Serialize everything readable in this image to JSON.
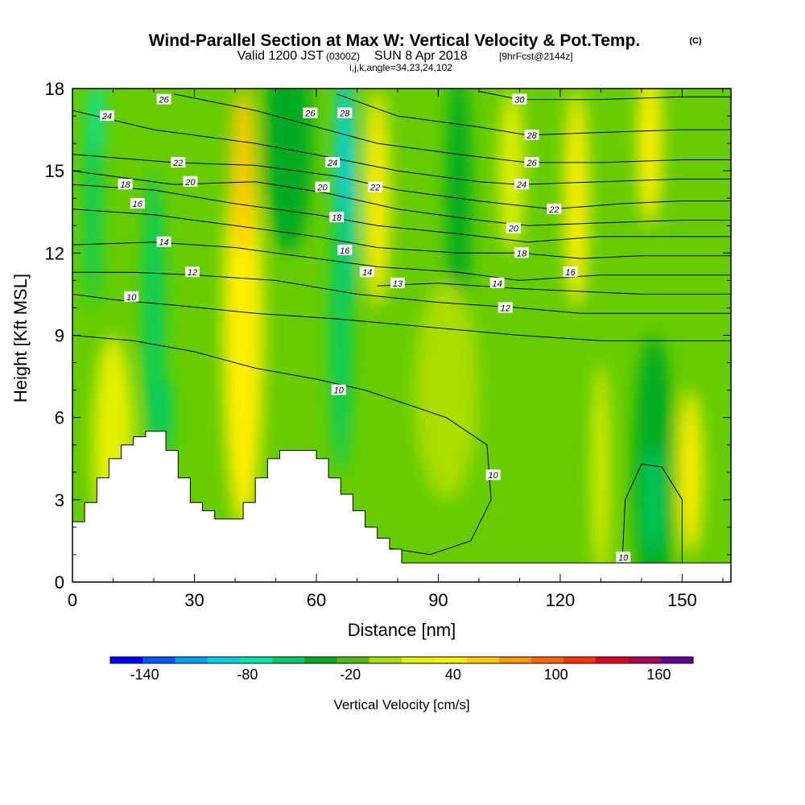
{
  "title": {
    "main": "Wind-Parallel Section at Max W: Vertical Velocity & Pot.Temp.",
    "main_unit": "(C)",
    "valid_prefix": "Valid 1200 JST",
    "valid_utc": "(0300Z)",
    "valid_date": "SUN 8 Apr 2018",
    "forecast": "[9hrFcst@2144z]",
    "indices": "i,j,k,angle=34,23,24,102"
  },
  "chart_data": {
    "type": "heatmap",
    "xlabel": "Distance [nm]",
    "ylabel": "Height [Kft MSL]",
    "xlim": [
      0,
      162
    ],
    "ylim": [
      0,
      18
    ],
    "x_ticks": [
      0,
      30,
      60,
      90,
      120,
      150
    ],
    "y_ticks": [
      0,
      3,
      6,
      9,
      12,
      15,
      18
    ],
    "colorbar": {
      "title": "Vertical Velocity [cm/s]",
      "tick_values": [
        -140,
        -80,
        -20,
        40,
        100,
        160
      ],
      "tick_labels": [
        "-140",
        "-80",
        "-20",
        "40",
        "100",
        "160"
      ],
      "boundaries": [
        -160,
        -140,
        -120,
        -100,
        -80,
        -60,
        -40,
        -20,
        0,
        20,
        40,
        60,
        80,
        100,
        120,
        140,
        160,
        180
      ],
      "colors": [
        "#0000ff",
        "#0055ff",
        "#00a0ff",
        "#00cfe6",
        "#00e6b0",
        "#00cc66",
        "#00aa22",
        "#55bb11",
        "#aadd00",
        "#e6f000",
        "#ffee00",
        "#ffcc00",
        "#ff9900",
        "#ff6600",
        "#ff3300",
        "#dd0022",
        "#aa0055",
        "#660099"
      ]
    },
    "velocity_features": [
      {
        "x": 5,
        "y": 14,
        "value": -60,
        "rx": 2,
        "ry": 4
      },
      {
        "x": 20,
        "y": 10,
        "value": -50,
        "rx": 2.5,
        "ry": 5
      },
      {
        "x": 23,
        "y": 6,
        "value": -60,
        "rx": 1.5,
        "ry": 1.5
      },
      {
        "x": 10,
        "y": 5,
        "value": 30,
        "rx": 5,
        "ry": 4
      },
      {
        "x": 42,
        "y": 9,
        "value": 40,
        "rx": 5,
        "ry": 7
      },
      {
        "x": 42,
        "y": 15,
        "value": 60,
        "rx": 3,
        "ry": 3
      },
      {
        "x": 53,
        "y": 16,
        "value": -30,
        "rx": 6,
        "ry": 4
      },
      {
        "x": 67,
        "y": 14,
        "value": -90,
        "rx": 2.5,
        "ry": 5
      },
      {
        "x": 66,
        "y": 9,
        "value": -50,
        "rx": 2.5,
        "ry": 5
      },
      {
        "x": 75,
        "y": 14,
        "value": 40,
        "rx": 3,
        "ry": 4
      },
      {
        "x": 95,
        "y": 14,
        "value": -25,
        "rx": 3,
        "ry": 5
      },
      {
        "x": 92,
        "y": 7,
        "value": 10,
        "rx": 8,
        "ry": 4
      },
      {
        "x": 108,
        "y": 15,
        "value": 20,
        "rx": 3,
        "ry": 3
      },
      {
        "x": 124,
        "y": 14,
        "value": 40,
        "rx": 3,
        "ry": 4
      },
      {
        "x": 142,
        "y": 16,
        "value": 40,
        "rx": 3,
        "ry": 3
      },
      {
        "x": 143,
        "y": 4,
        "value": -30,
        "rx": 5,
        "ry": 5
      },
      {
        "x": 143,
        "y": 3,
        "value": -60,
        "rx": 2,
        "ry": 2
      },
      {
        "x": 152,
        "y": 4,
        "value": 40,
        "rx": 3,
        "ry": 3
      },
      {
        "x": 130,
        "y": 4,
        "value": 30,
        "rx": 2,
        "ry": 4
      },
      {
        "x": 6,
        "y": 17,
        "value": -80,
        "rx": 1.5,
        "ry": 1.5
      }
    ],
    "theta_contours": [
      {
        "label": "10",
        "points": [
          [
            0,
            9
          ],
          [
            15,
            8.8
          ],
          [
            30,
            8.4
          ],
          [
            45,
            7.8
          ],
          [
            60,
            7.4
          ],
          [
            72,
            7.0
          ],
          [
            82,
            6.5
          ],
          [
            92,
            6.0
          ],
          [
            102,
            5.0
          ],
          [
            103,
            3
          ],
          [
            98,
            1.5
          ],
          [
            88,
            1.0
          ],
          [
            75,
            1.3
          ]
        ]
      },
      {
        "label": "10",
        "points": [
          [
            135,
            0
          ],
          [
            136,
            3
          ],
          [
            140,
            4.3
          ],
          [
            145,
            4.2
          ],
          [
            150,
            3
          ],
          [
            150,
            0
          ]
        ]
      },
      {
        "label": "10",
        "points": [
          [
            0,
            10.5
          ],
          [
            10,
            10.3
          ],
          [
            25,
            10.1
          ],
          [
            45,
            9.8
          ],
          [
            65,
            9.6
          ],
          [
            80,
            9.4
          ],
          [
            95,
            9.2
          ],
          [
            110,
            9.0
          ],
          [
            130,
            8.8
          ],
          [
            150,
            8.8
          ],
          [
            162,
            8.8
          ]
        ]
      },
      {
        "label": "12",
        "points": [
          [
            0,
            11.3
          ],
          [
            15,
            11.3
          ],
          [
            30,
            11.2
          ],
          [
            50,
            11.0
          ],
          [
            70,
            10.5
          ],
          [
            90,
            10.2
          ],
          [
            110,
            10.0
          ],
          [
            125,
            9.8
          ],
          [
            140,
            9.8
          ],
          [
            162,
            9.8
          ]
        ]
      },
      {
        "label": "13",
        "points": [
          [
            75,
            10.8
          ],
          [
            90,
            10.9
          ],
          [
            110,
            10.7
          ],
          [
            125,
            10.6
          ],
          [
            140,
            10.5
          ],
          [
            162,
            10.5
          ]
        ]
      },
      {
        "label": "14",
        "points": [
          [
            0,
            12.3
          ],
          [
            20,
            12.4
          ],
          [
            40,
            12.2
          ],
          [
            60,
            11.8
          ],
          [
            75,
            11.5
          ],
          [
            95,
            11.3
          ],
          [
            110,
            11.0
          ],
          [
            130,
            11.2
          ],
          [
            150,
            11.2
          ],
          [
            162,
            11.2
          ]
        ]
      },
      {
        "label": "16",
        "points": [
          [
            0,
            13.6
          ],
          [
            20,
            13.4
          ],
          [
            40,
            13.0
          ],
          [
            60,
            12.6
          ],
          [
            75,
            12.2
          ],
          [
            95,
            12.0
          ],
          [
            110,
            12.0
          ],
          [
            125,
            11.8
          ],
          [
            140,
            11.9
          ],
          [
            162,
            11.9
          ]
        ]
      },
      {
        "label": "18",
        "points": [
          [
            0,
            14.5
          ],
          [
            20,
            14.3
          ],
          [
            40,
            13.8
          ],
          [
            60,
            13.4
          ],
          [
            75,
            13.0
          ],
          [
            95,
            12.7
          ],
          [
            112,
            12.4
          ],
          [
            130,
            12.6
          ],
          [
            150,
            12.6
          ],
          [
            162,
            12.6
          ]
        ]
      },
      {
        "label": "20",
        "points": [
          [
            0,
            15.0
          ],
          [
            25,
            14.5
          ],
          [
            45,
            14.6
          ],
          [
            62,
            14.2
          ],
          [
            80,
            13.6
          ],
          [
            100,
            13.2
          ],
          [
            112,
            13.0
          ],
          [
            130,
            13.1
          ],
          [
            150,
            13.2
          ],
          [
            162,
            13.2
          ]
        ]
      },
      {
        "label": "22",
        "points": [
          [
            0,
            15.6
          ],
          [
            25,
            15.3
          ],
          [
            45,
            15.2
          ],
          [
            65,
            14.8
          ],
          [
            80,
            14.3
          ],
          [
            100,
            13.9
          ],
          [
            118,
            13.6
          ],
          [
            135,
            13.8
          ],
          [
            150,
            13.9
          ],
          [
            162,
            13.9
          ]
        ]
      },
      {
        "label": "24",
        "points": [
          [
            0,
            17.2
          ],
          [
            20,
            16.5
          ],
          [
            45,
            16.0
          ],
          [
            63,
            15.5
          ],
          [
            80,
            15.0
          ],
          [
            100,
            14.6
          ],
          [
            110,
            14.5
          ],
          [
            130,
            14.6
          ],
          [
            150,
            14.7
          ],
          [
            162,
            14.7
          ]
        ]
      },
      {
        "label": "26",
        "points": [
          [
            25,
            17.8
          ],
          [
            45,
            17.2
          ],
          [
            60,
            16.6
          ],
          [
            75,
            16.0
          ],
          [
            95,
            15.6
          ],
          [
            112,
            15.3
          ],
          [
            130,
            15.3
          ],
          [
            150,
            15.4
          ],
          [
            162,
            15.4
          ]
        ]
      },
      {
        "label": "28",
        "points": [
          [
            65,
            17.8
          ],
          [
            80,
            17.0
          ],
          [
            100,
            16.6
          ],
          [
            112,
            16.3
          ],
          [
            130,
            16.4
          ],
          [
            150,
            16.5
          ],
          [
            162,
            16.5
          ]
        ]
      },
      {
        "label": "30",
        "points": [
          [
            100,
            17.9
          ],
          [
            110,
            17.6
          ],
          [
            130,
            17.6
          ],
          [
            150,
            17.7
          ],
          [
            162,
            17.7
          ]
        ]
      }
    ],
    "contour_labels": [
      {
        "x": 8.5,
        "y": 17.0,
        "text": "24"
      },
      {
        "x": 22.5,
        "y": 17.6,
        "text": "26"
      },
      {
        "x": 58.5,
        "y": 17.1,
        "text": "26"
      },
      {
        "x": 67,
        "y": 17.1,
        "text": "28"
      },
      {
        "x": 110,
        "y": 17.6,
        "text": "30"
      },
      {
        "x": 113,
        "y": 16.3,
        "text": "28"
      },
      {
        "x": 113,
        "y": 15.3,
        "text": "26"
      },
      {
        "x": 110.5,
        "y": 14.5,
        "text": "24"
      },
      {
        "x": 118.5,
        "y": 13.6,
        "text": "22"
      },
      {
        "x": 26,
        "y": 15.3,
        "text": "22"
      },
      {
        "x": 29,
        "y": 14.6,
        "text": "20"
      },
      {
        "x": 13,
        "y": 14.5,
        "text": "18"
      },
      {
        "x": 16,
        "y": 13.8,
        "text": "16"
      },
      {
        "x": 22.5,
        "y": 12.4,
        "text": "14"
      },
      {
        "x": 29.5,
        "y": 11.3,
        "text": "12"
      },
      {
        "x": 14.5,
        "y": 10.4,
        "text": "10"
      },
      {
        "x": 64,
        "y": 15.3,
        "text": "24"
      },
      {
        "x": 61.5,
        "y": 14.4,
        "text": "20"
      },
      {
        "x": 74.5,
        "y": 14.4,
        "text": "22"
      },
      {
        "x": 65,
        "y": 13.3,
        "text": "18"
      },
      {
        "x": 67,
        "y": 12.1,
        "text": "16"
      },
      {
        "x": 72.5,
        "y": 11.3,
        "text": "14"
      },
      {
        "x": 80,
        "y": 10.9,
        "text": "13"
      },
      {
        "x": 108.5,
        "y": 12.9,
        "text": "20"
      },
      {
        "x": 110.5,
        "y": 12.0,
        "text": "18"
      },
      {
        "x": 122.5,
        "y": 11.3,
        "text": "16"
      },
      {
        "x": 104.5,
        "y": 10.9,
        "text": "14"
      },
      {
        "x": 106.5,
        "y": 10.0,
        "text": "12"
      },
      {
        "x": 65.5,
        "y": 7.0,
        "text": "10"
      },
      {
        "x": 103.5,
        "y": 3.9,
        "text": "10"
      },
      {
        "x": 135.5,
        "y": 0.9,
        "text": "10"
      }
    ],
    "terrain": [
      [
        0,
        2.2
      ],
      [
        3,
        2.2
      ],
      [
        3,
        2.9
      ],
      [
        6,
        2.9
      ],
      [
        6,
        3.8
      ],
      [
        9,
        3.8
      ],
      [
        9,
        4.5
      ],
      [
        12,
        4.5
      ],
      [
        12,
        5.0
      ],
      [
        15,
        5.0
      ],
      [
        15,
        5.3
      ],
      [
        18,
        5.3
      ],
      [
        18,
        5.5
      ],
      [
        23,
        5.5
      ],
      [
        23,
        4.8
      ],
      [
        26,
        4.8
      ],
      [
        26,
        3.8
      ],
      [
        29,
        3.8
      ],
      [
        29,
        2.9
      ],
      [
        32,
        2.9
      ],
      [
        32,
        2.6
      ],
      [
        35,
        2.6
      ],
      [
        35,
        2.3
      ],
      [
        42,
        2.3
      ],
      [
        42,
        2.9
      ],
      [
        45,
        2.9
      ],
      [
        45,
        3.8
      ],
      [
        48,
        3.8
      ],
      [
        48,
        4.5
      ],
      [
        51,
        4.5
      ],
      [
        51,
        4.8
      ],
      [
        60,
        4.8
      ],
      [
        60,
        4.5
      ],
      [
        63,
        4.5
      ],
      [
        63,
        3.8
      ],
      [
        66,
        3.8
      ],
      [
        66,
        3.2
      ],
      [
        69,
        3.2
      ],
      [
        69,
        2.6
      ],
      [
        72,
        2.6
      ],
      [
        72,
        2.0
      ],
      [
        75,
        2.0
      ],
      [
        75,
        1.6
      ],
      [
        78,
        1.6
      ],
      [
        78,
        1.2
      ],
      [
        81,
        1.2
      ],
      [
        81,
        0.7
      ],
      [
        162,
        0.7
      ],
      [
        162,
        0
      ]
    ]
  }
}
